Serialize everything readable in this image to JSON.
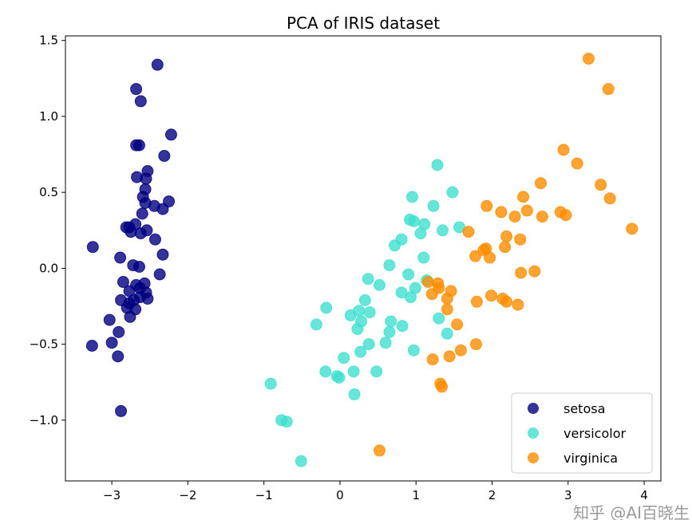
{
  "chart_data": {
    "type": "scatter",
    "title": "PCA of IRIS dataset",
    "xlabel": "",
    "ylabel": "",
    "xlim": [
      -3.61,
      4.22
    ],
    "ylim": [
      -1.4,
      1.53
    ],
    "xticks": [
      -3,
      -2,
      -1,
      0,
      1,
      2,
      3,
      4
    ],
    "xtick_labels": [
      "−3",
      "−2",
      "−1",
      "0",
      "1",
      "2",
      "3",
      "4"
    ],
    "yticks": [
      -1.0,
      -0.5,
      0.0,
      0.5,
      1.0,
      1.5
    ],
    "ytick_labels": [
      "−1.0",
      "−0.5",
      "0.0",
      "0.5",
      "1.0",
      "1.5"
    ],
    "grid": false,
    "legend_position": "lower-right",
    "series": [
      {
        "name": "setosa",
        "color": "#000080",
        "alpha": 0.8,
        "points": [
          [
            -2.4,
            1.34
          ],
          [
            -2.68,
            1.18
          ],
          [
            -2.62,
            1.1
          ],
          [
            -2.22,
            0.88
          ],
          [
            -2.68,
            0.81
          ],
          [
            -2.64,
            0.81
          ],
          [
            -2.31,
            0.74
          ],
          [
            -2.53,
            0.64
          ],
          [
            -2.67,
            0.6
          ],
          [
            -2.55,
            0.59
          ],
          [
            -2.56,
            0.52
          ],
          [
            -2.59,
            0.47
          ],
          [
            -2.25,
            0.44
          ],
          [
            -2.56,
            0.43
          ],
          [
            -2.6,
            0.36
          ],
          [
            -2.44,
            0.41
          ],
          [
            -2.33,
            0.39
          ],
          [
            -2.54,
            0.25
          ],
          [
            -2.43,
            0.19
          ],
          [
            -2.81,
            0.27
          ],
          [
            -2.77,
            0.27
          ],
          [
            -2.69,
            0.29
          ],
          [
            -2.75,
            0.24
          ],
          [
            -3.25,
            0.14
          ],
          [
            -2.89,
            0.07
          ],
          [
            -2.62,
            0.23
          ],
          [
            -2.33,
            0.09
          ],
          [
            -2.64,
            0.01
          ],
          [
            -2.37,
            -0.04
          ],
          [
            -2.72,
            0.02
          ],
          [
            -2.85,
            -0.09
          ],
          [
            -2.77,
            -0.15
          ],
          [
            -2.68,
            -0.11
          ],
          [
            -2.63,
            -0.13
          ],
          [
            -2.57,
            -0.1
          ],
          [
            -2.55,
            -0.16
          ],
          [
            -2.71,
            -0.21
          ],
          [
            -2.77,
            -0.23
          ],
          [
            -2.88,
            -0.21
          ],
          [
            -2.69,
            -0.27
          ],
          [
            -2.8,
            -0.26
          ],
          [
            -2.76,
            -0.32
          ],
          [
            -3.03,
            -0.34
          ],
          [
            -2.91,
            -0.42
          ],
          [
            -3.26,
            -0.51
          ],
          [
            -3.0,
            -0.49
          ],
          [
            -2.92,
            -0.58
          ],
          [
            -2.88,
            -0.94
          ],
          [
            -2.63,
            -0.19
          ],
          [
            -2.53,
            -0.2
          ]
        ]
      },
      {
        "name": "versicolor",
        "color": "#40E0D0",
        "alpha": 0.8,
        "points": [
          [
            1.48,
            0.5
          ],
          [
            0.95,
            0.47
          ],
          [
            1.23,
            0.41
          ],
          [
            0.92,
            0.32
          ],
          [
            0.97,
            0.31
          ],
          [
            1.11,
            0.29
          ],
          [
            1.06,
            0.23
          ],
          [
            1.35,
            0.25
          ],
          [
            1.57,
            0.27
          ],
          [
            0.81,
            0.19
          ],
          [
            0.72,
            0.15
          ],
          [
            1.1,
            0.07
          ],
          [
            0.65,
            0.02
          ],
          [
            0.9,
            -0.04
          ],
          [
            0.37,
            -0.07
          ],
          [
            0.52,
            -0.11
          ],
          [
            0.81,
            -0.16
          ],
          [
            0.99,
            -0.13
          ],
          [
            1.14,
            -0.08
          ],
          [
            0.93,
            -0.19
          ],
          [
            0.33,
            -0.21
          ],
          [
            -0.18,
            -0.26
          ],
          [
            -0.31,
            -0.37
          ],
          [
            0.14,
            -0.31
          ],
          [
            0.25,
            -0.28
          ],
          [
            0.39,
            -0.29
          ],
          [
            0.28,
            -0.35
          ],
          [
            0.23,
            -0.4
          ],
          [
            0.67,
            -0.35
          ],
          [
            0.82,
            -0.38
          ],
          [
            0.65,
            -0.42
          ],
          [
            0.6,
            -0.49
          ],
          [
            1.3,
            -0.33
          ],
          [
            1.41,
            -0.43
          ],
          [
            0.38,
            -0.5
          ],
          [
            0.27,
            -0.55
          ],
          [
            0.05,
            -0.59
          ],
          [
            0.97,
            -0.54
          ],
          [
            -0.19,
            -0.68
          ],
          [
            -0.04,
            -0.71
          ],
          [
            -0.01,
            -0.72
          ],
          [
            0.18,
            -0.68
          ],
          [
            0.48,
            -0.68
          ],
          [
            0.19,
            -0.83
          ],
          [
            -0.91,
            -0.76
          ],
          [
            -0.77,
            -1.0
          ],
          [
            -0.7,
            -1.01
          ],
          [
            -0.51,
            -1.27
          ],
          [
            1.28,
            0.68
          ]
        ]
      },
      {
        "name": "virginica",
        "color": "#FF8C00",
        "alpha": 0.8,
        "points": [
          [
            3.27,
            1.38
          ],
          [
            3.53,
            1.18
          ],
          [
            2.94,
            0.78
          ],
          [
            3.12,
            0.69
          ],
          [
            2.64,
            0.56
          ],
          [
            3.43,
            0.55
          ],
          [
            3.55,
            0.46
          ],
          [
            2.41,
            0.47
          ],
          [
            1.93,
            0.41
          ],
          [
            2.12,
            0.37
          ],
          [
            2.46,
            0.38
          ],
          [
            2.3,
            0.34
          ],
          [
            2.66,
            0.34
          ],
          [
            2.9,
            0.37
          ],
          [
            2.97,
            0.35
          ],
          [
            3.84,
            0.26
          ],
          [
            1.69,
            0.24
          ],
          [
            1.92,
            0.13
          ],
          [
            1.97,
            0.07
          ],
          [
            1.89,
            0.12
          ],
          [
            2.19,
            0.21
          ],
          [
            2.37,
            0.19
          ],
          [
            2.17,
            0.14
          ],
          [
            1.78,
            0.08
          ],
          [
            2.56,
            -0.02
          ],
          [
            2.38,
            -0.03
          ],
          [
            1.29,
            -0.1
          ],
          [
            1.16,
            -0.09
          ],
          [
            1.46,
            -0.15
          ],
          [
            1.3,
            -0.13
          ],
          [
            1.41,
            -0.2
          ],
          [
            1.21,
            -0.17
          ],
          [
            1.8,
            -0.22
          ],
          [
            1.99,
            -0.18
          ],
          [
            2.14,
            -0.2
          ],
          [
            2.19,
            -0.22
          ],
          [
            2.34,
            -0.24
          ],
          [
            1.41,
            -0.27
          ],
          [
            1.54,
            -0.37
          ],
          [
            1.79,
            -0.5
          ],
          [
            1.59,
            -0.54
          ],
          [
            1.44,
            -0.58
          ],
          [
            1.22,
            -0.6
          ],
          [
            1.32,
            -0.76
          ],
          [
            1.34,
            -0.78
          ],
          [
            0.52,
            -1.2
          ]
        ]
      }
    ]
  },
  "watermark": "知乎 @AI百晓生"
}
